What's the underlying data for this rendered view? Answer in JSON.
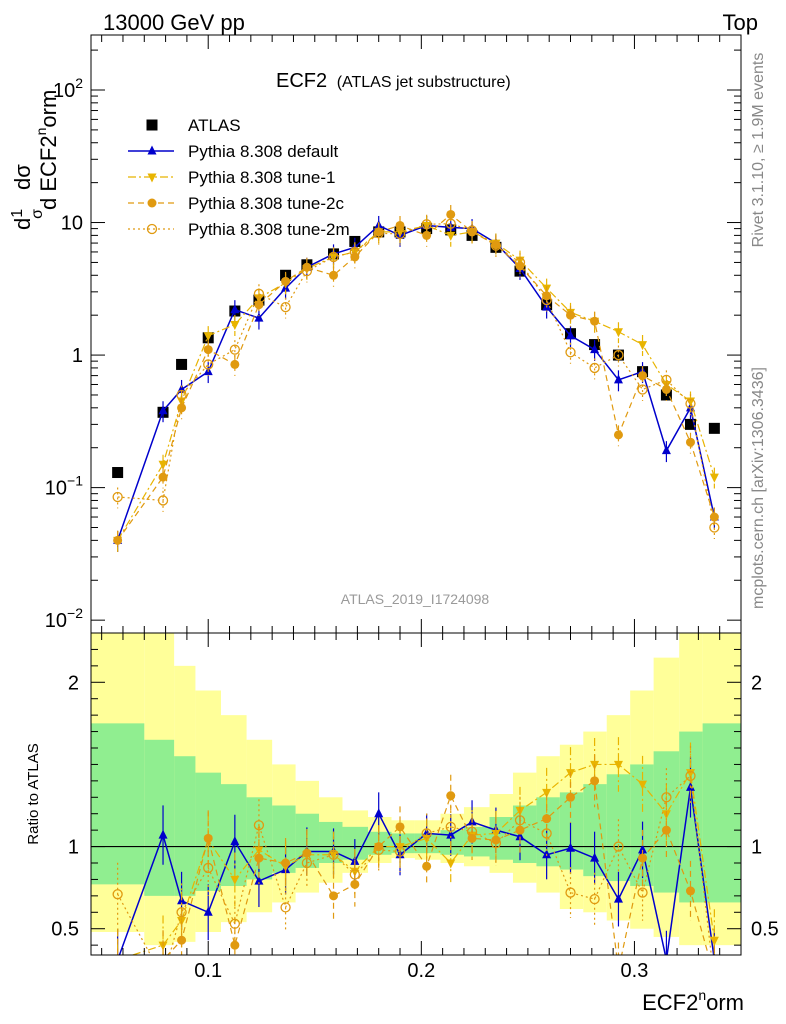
{
  "header": {
    "left": "13000 GeV pp",
    "right": "Top"
  },
  "side_labels": {
    "rivet": "Rivet 3.1.10, ≥ 1.9M events",
    "mcplots": "mcplots.cern.ch [arXiv:1306.3436]"
  },
  "plot_title": {
    "main": "ECF2",
    "sub": "(ATLAS jet substructure)"
  },
  "analysis_id": "ATLAS_2019_I1724098",
  "chart_data": [
    {
      "type": "line",
      "panel": "main",
      "yscale": "log",
      "ylabel": "1/σ dσ/d ECF2^norm",
      "ylim": [
        0.008,
        260
      ],
      "xlim": [
        0.045,
        0.35
      ],
      "yticks": [
        {
          "v": 0.01,
          "base": "10",
          "exp": "−2"
        },
        {
          "v": 0.1,
          "base": "10",
          "exp": "−1"
        },
        {
          "v": 1,
          "base": "1",
          "exp": ""
        },
        {
          "v": 10,
          "base": "10",
          "exp": ""
        },
        {
          "v": 100,
          "base": "10",
          "exp": "2"
        }
      ],
      "legend_position": "top-left",
      "x": [
        0.0575,
        0.0788,
        0.0875,
        0.1,
        0.1125,
        0.1238,
        0.1363,
        0.1463,
        0.1588,
        0.1688,
        0.18,
        0.19,
        0.2025,
        0.2138,
        0.2238,
        0.235,
        0.2463,
        0.2588,
        0.27,
        0.2813,
        0.2925,
        0.3038,
        0.315,
        0.3263,
        0.3375
      ],
      "series": [
        {
          "name": "ATLAS",
          "color": "#000000",
          "marker": "square",
          "values": [
            0.13,
            0.37,
            0.85,
            1.35,
            2.15,
            2.6,
            4.0,
            4.8,
            5.8,
            7.2,
            8.5,
            8.5,
            9.0,
            8.8,
            8.0,
            6.5,
            4.3,
            2.4,
            1.45,
            1.2,
            1.0,
            0.75,
            0.5,
            0.3,
            0.28
          ]
        },
        {
          "name": "Pythia 8.308 default",
          "color": "#0000cc",
          "marker": "triangle-up",
          "line": "solid",
          "values": [
            0.04,
            0.38,
            0.55,
            0.75,
            2.2,
            1.9,
            3.2,
            4.6,
            5.8,
            6.5,
            9.5,
            8.0,
            9.5,
            9.2,
            9.0,
            7.0,
            4.5,
            2.3,
            1.4,
            1.1,
            0.65,
            0.75,
            0.19,
            0.4,
            0.06
          ]
        },
        {
          "name": "Pythia 8.308 tune-1",
          "color": "#e8b400",
          "marker": "triangle-down",
          "line": "dashdot",
          "values": [
            0.04,
            0.15,
            0.45,
            1.4,
            1.7,
            2.7,
            3.5,
            4.5,
            5.5,
            6.0,
            8.5,
            8.5,
            9.5,
            8.0,
            8.5,
            7.0,
            5.2,
            3.2,
            2.1,
            1.8,
            1.5,
            1.2,
            0.6,
            0.45,
            0.12
          ]
        },
        {
          "name": "Pythia 8.308 tune-2c",
          "color": "#e09a10",
          "marker": "circle",
          "line": "dashed",
          "values": [
            0.04,
            0.12,
            0.4,
            1.1,
            0.85,
            2.4,
            3.6,
            4.6,
            4.0,
            5.5,
            8.5,
            9.5,
            8.0,
            11.5,
            8.5,
            6.8,
            4.7,
            2.8,
            2.0,
            1.8,
            0.25,
            0.7,
            0.55,
            0.22,
            0.06
          ]
        },
        {
          "name": "Pythia 8.308 tune-2m",
          "color": "#e09a10",
          "marker": "open-circle",
          "line": "dotted",
          "values": [
            0.085,
            0.08,
            0.5,
            0.85,
            1.1,
            2.9,
            2.3,
            4.3,
            5.5,
            6.0,
            8.3,
            8.2,
            9.7,
            9.8,
            8.7,
            6.7,
            5.0,
            2.6,
            1.05,
            0.8,
            1.0,
            0.55,
            0.65,
            0.43,
            0.05
          ]
        }
      ]
    },
    {
      "type": "line",
      "panel": "ratio",
      "ylabel": "Ratio to ATLAS",
      "xlabel": "ECF2^norm",
      "ylim": [
        0.34,
        2.3
      ],
      "yticks": [
        0.5,
        1,
        2
      ],
      "xticks": [
        0.1,
        0.2,
        0.3
      ],
      "reference_line": 1.0,
      "uncertainty_bands": {
        "edges": [
          0.045,
          0.07,
          0.084,
          0.094,
          0.106,
          0.118,
          0.13,
          0.141,
          0.152,
          0.163,
          0.175,
          0.186,
          0.197,
          0.209,
          0.22,
          0.232,
          0.243,
          0.254,
          0.265,
          0.276,
          0.287,
          0.298,
          0.309,
          0.321,
          0.332,
          0.35
        ],
        "green": {
          "color": "#90ee90",
          "lo": [
            0.77,
            0.7,
            0.7,
            0.73,
            0.76,
            0.8,
            0.84,
            0.87,
            0.9,
            0.92,
            0.95,
            0.96,
            0.96,
            0.95,
            0.94,
            0.92,
            0.9,
            0.88,
            0.86,
            0.82,
            0.79,
            0.76,
            0.72,
            0.66,
            0.66
          ],
          "hi": [
            1.75,
            1.65,
            1.55,
            1.45,
            1.38,
            1.3,
            1.25,
            1.2,
            1.15,
            1.12,
            1.09,
            1.08,
            1.08,
            1.1,
            1.12,
            1.18,
            1.25,
            1.3,
            1.33,
            1.38,
            1.44,
            1.5,
            1.58,
            1.7,
            1.75
          ]
        },
        "yellow": {
          "color": "#ffff99",
          "lo": [
            0.48,
            0.4,
            0.42,
            0.48,
            0.54,
            0.6,
            0.66,
            0.72,
            0.78,
            0.84,
            0.9,
            0.93,
            0.92,
            0.9,
            0.88,
            0.84,
            0.78,
            0.72,
            0.62,
            0.6,
            0.55,
            0.5,
            0.45,
            0.4,
            0.4
          ],
          "hi": [
            2.3,
            2.3,
            2.1,
            1.95,
            1.8,
            1.65,
            1.5,
            1.4,
            1.3,
            1.22,
            1.18,
            1.16,
            1.16,
            1.2,
            1.24,
            1.32,
            1.45,
            1.55,
            1.62,
            1.7,
            1.8,
            1.95,
            2.15,
            2.3,
            2.3
          ]
        }
      },
      "x": [
        0.0575,
        0.0788,
        0.0875,
        0.1,
        0.1125,
        0.1238,
        0.1363,
        0.1463,
        0.1588,
        0.1688,
        0.18,
        0.19,
        0.2025,
        0.2138,
        0.2238,
        0.235,
        0.2463,
        0.2588,
        0.27,
        0.2813,
        0.2925,
        0.3038,
        0.315,
        0.3263,
        0.3375
      ],
      "series": [
        {
          "name": "Pythia 8.308 default",
          "color": "#0000cc",
          "marker": "triangle-up",
          "line": "solid",
          "values": [
            0.31,
            1.07,
            0.67,
            0.6,
            1.03,
            0.79,
            0.86,
            0.97,
            0.97,
            0.91,
            1.2,
            0.95,
            1.08,
            1.07,
            1.15,
            1.1,
            1.06,
            0.95,
            0.99,
            0.93,
            0.68,
            0.98,
            0.31,
            1.36,
            0.31
          ]
        },
        {
          "name": "Pythia 8.308 tune-1",
          "color": "#e8b400",
          "marker": "triangle-down",
          "line": "dashdot",
          "values": [
            0.31,
            0.4,
            0.55,
            1.04,
            0.8,
            0.98,
            0.88,
            0.95,
            0.95,
            0.85,
            1.0,
            1.0,
            1.05,
            0.9,
            1.07,
            1.08,
            1.22,
            1.33,
            1.45,
            1.5,
            1.5,
            1.38,
            1.2,
            1.45,
            0.43
          ]
        },
        {
          "name": "Pythia 8.308 tune-2c",
          "color": "#e09a10",
          "marker": "circle",
          "line": "dashed",
          "values": [
            0.31,
            0.31,
            0.43,
            1.05,
            0.4,
            0.93,
            0.9,
            0.96,
            0.7,
            0.77,
            1.0,
            1.12,
            0.88,
            1.31,
            1.05,
            1.04,
            1.1,
            1.17,
            1.3,
            1.4,
            0.25,
            0.93,
            1.1,
            0.73,
            0.21
          ]
        },
        {
          "name": "Pythia 8.308 tune-2m",
          "color": "#e09a10",
          "marker": "open-circle",
          "line": "dotted",
          "values": [
            0.71,
            0.2,
            0.6,
            0.87,
            0.53,
            1.13,
            0.63,
            0.9,
            0.95,
            0.83,
            0.98,
            0.97,
            1.08,
            1.12,
            1.09,
            1.02,
            1.16,
            1.08,
            0.72,
            0.68,
            1.0,
            0.72,
            1.3,
            1.43,
            0.18
          ]
        }
      ]
    }
  ]
}
